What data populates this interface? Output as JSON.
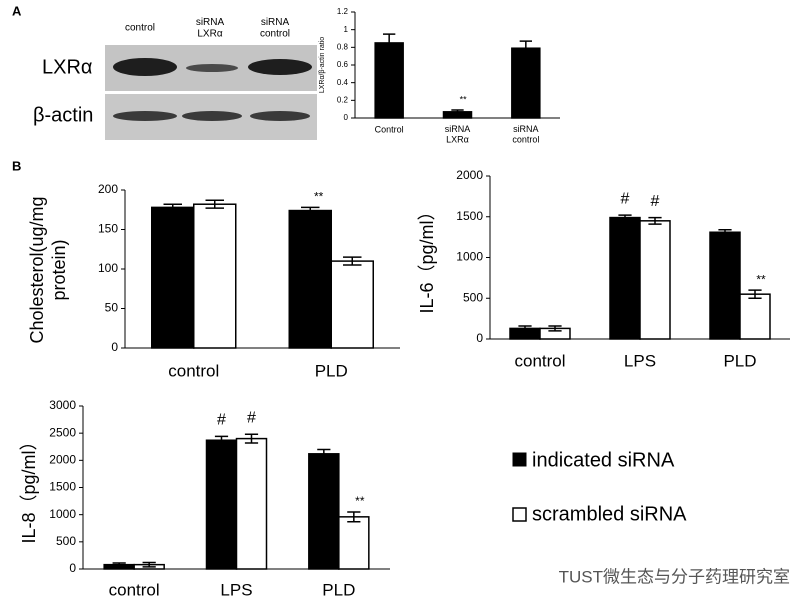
{
  "panels": [
    "A",
    "B"
  ],
  "blot": {
    "lanes": [
      "control",
      "siRNA\nLXRα",
      "siRNA\ncontrol"
    ],
    "rows": [
      "LXRα",
      "β-actin"
    ]
  },
  "watermark": "TUST微生态与分子药理研究室",
  "chart_data": [
    {
      "type": "bar",
      "ylabel": "LXRα/β-actin ratio",
      "categories": [
        "Control",
        "siRNA\nLXRα",
        "siRNA\ncontrol"
      ],
      "values": [
        0.85,
        0.07,
        0.79
      ],
      "errors": [
        0.1,
        0.02,
        0.08
      ],
      "annotations": [
        null,
        "**",
        null
      ],
      "color": "#000000",
      "ylim": [
        0,
        1.2
      ],
      "yticks": [
        0,
        0.2,
        0.4,
        0.6,
        0.8,
        1,
        1.2
      ]
    },
    {
      "type": "bar",
      "ylabel": [
        "Cholesterol(ug/mg",
        "protein)"
      ],
      "categories": [
        "control",
        "PLD"
      ],
      "series": [
        {
          "name": "indicated siRNA",
          "color": "#000000",
          "values": [
            178,
            174
          ],
          "errors": [
            4,
            4
          ],
          "annotations": [
            null,
            "**"
          ]
        },
        {
          "name": "scrambled siRNA",
          "color": "#ffffff",
          "values": [
            182,
            110
          ],
          "errors": [
            5,
            5
          ],
          "annotations": [
            null,
            null
          ]
        }
      ],
      "ylim": [
        0,
        200
      ],
      "yticks": [
        0,
        50,
        100,
        150,
        200
      ]
    },
    {
      "type": "bar",
      "ylabel": "IL-6（pg/ml）",
      "categories": [
        "control",
        "LPS",
        "PLD"
      ],
      "series": [
        {
          "color": "#000000",
          "values": [
            130,
            1490,
            1310
          ],
          "errors": [
            30,
            30,
            30
          ],
          "annotations": [
            null,
            "#",
            null
          ]
        },
        {
          "color": "#ffffff",
          "values": [
            130,
            1450,
            550
          ],
          "errors": [
            30,
            40,
            50
          ],
          "annotations": [
            null,
            "#",
            "**"
          ]
        }
      ],
      "ylim": [
        0,
        2000
      ],
      "yticks": [
        0,
        500,
        1000,
        1500,
        2000
      ]
    },
    {
      "type": "bar",
      "ylabel": "IL-8（pg/ml）",
      "categories": [
        "control",
        "LPS",
        "PLD"
      ],
      "series": [
        {
          "color": "#000000",
          "values": [
            80,
            2370,
            2120
          ],
          "errors": [
            30,
            70,
            80
          ],
          "annotations": [
            null,
            "#",
            null
          ]
        },
        {
          "color": "#ffffff",
          "values": [
            80,
            2400,
            960
          ],
          "errors": [
            40,
            80,
            90
          ],
          "annotations": [
            null,
            "#",
            "**"
          ]
        }
      ],
      "ylim": [
        0,
        3000
      ],
      "yticks": [
        0,
        500,
        1000,
        1500,
        2000,
        2500,
        3000
      ]
    }
  ]
}
